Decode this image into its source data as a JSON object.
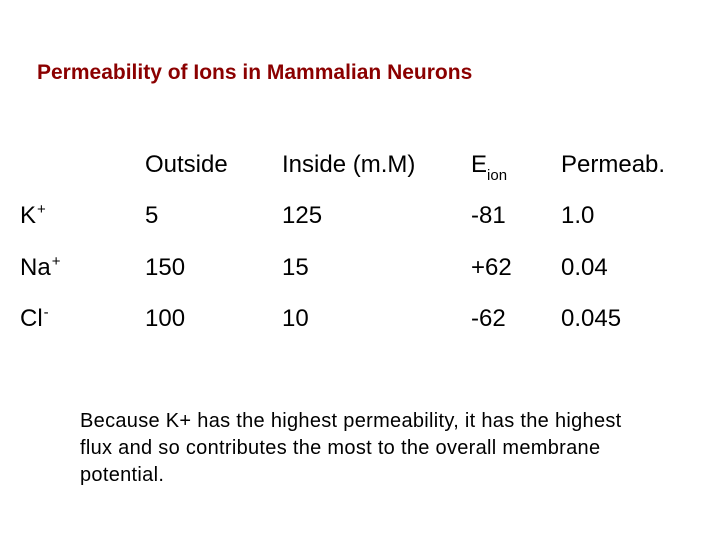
{
  "title": "Permeability of Ions in Mammalian Neurons",
  "table": {
    "headers": {
      "outside": "Outside",
      "inside": "Inside (m.M)",
      "e_main": "E",
      "e_sub": "ion",
      "permeab": "Permeab."
    },
    "rows": [
      {
        "ion": "K",
        "charge": "+",
        "outside": "5",
        "inside": "125",
        "eion": "-81",
        "permeab": "1.0"
      },
      {
        "ion": "Na",
        "charge": "+",
        "outside": "150",
        "inside": "15",
        "eion": "+62",
        "permeab": "0.04"
      },
      {
        "ion": "Cl",
        "charge": "-",
        "outside": "100",
        "inside": "10",
        "eion": "-62",
        "permeab": "0.045"
      }
    ]
  },
  "note": "Because K+ has the highest permeability, it has the highest flux and so contributes the most to the overall membrane potential.",
  "colors": {
    "title": "#8b0000",
    "text": "#000000",
    "background": "#ffffff"
  }
}
